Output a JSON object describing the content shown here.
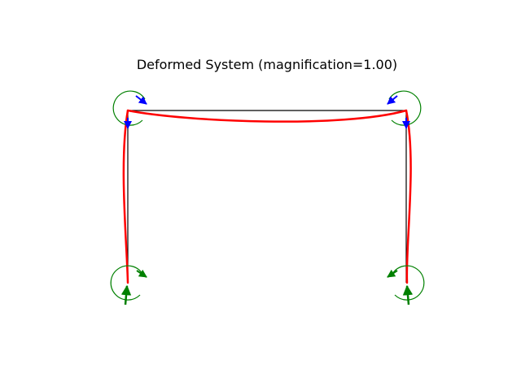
{
  "title": "Deformed System (magnification=1.00)",
  "colors": {
    "undeformed": "#000000",
    "deformed": "#ff0000",
    "load_arrow": "#0000ff",
    "reaction_arrow": "#008000"
  },
  "structure": {
    "members": [
      "left-column",
      "beam",
      "right-column"
    ],
    "supports": [
      "left-support",
      "right-support"
    ]
  }
}
